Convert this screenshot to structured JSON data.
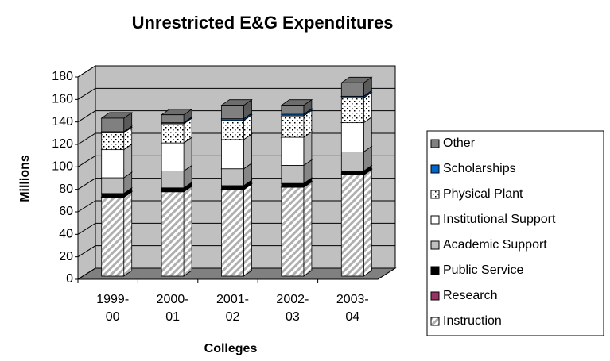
{
  "chart_data": {
    "type": "bar",
    "stacked": true,
    "title": "Unrestricted E&G Expenditures",
    "x_label": "Colleges",
    "y_label": "Millions",
    "categories": [
      "1999-00",
      "2000-01",
      "2001-02",
      "2002-03",
      "2003-04"
    ],
    "series": [
      {
        "name": "Instruction",
        "color": "#c0c0c0",
        "pattern": "hatch",
        "values": [
          70,
          75,
          77,
          79,
          90
        ]
      },
      {
        "name": "Research",
        "color": "#993366",
        "values": [
          0.5,
          0.5,
          0.5,
          0.5,
          0.5
        ]
      },
      {
        "name": "Public Service",
        "color": "#000000",
        "values": [
          3,
          3,
          3,
          3,
          3
        ]
      },
      {
        "name": "Academic Support",
        "color": "#c0c0c0",
        "values": [
          14,
          15,
          15,
          16,
          17
        ]
      },
      {
        "name": "Institutional Support",
        "color": "#ffffff",
        "values": [
          25,
          25,
          26,
          25,
          26
        ]
      },
      {
        "name": "Physical Plant",
        "color": "#ffffff",
        "pattern": "dots",
        "values": [
          15,
          17,
          17,
          19,
          22
        ]
      },
      {
        "name": "Scholarships",
        "color": "#0066cc",
        "values": [
          1,
          1,
          1.5,
          1.5,
          1.5
        ]
      },
      {
        "name": "Other",
        "color": "#808080",
        "values": [
          12,
          7,
          12,
          8,
          12
        ]
      }
    ],
    "ylim": [
      0,
      180
    ],
    "yticks": [
      0,
      20,
      40,
      60,
      80,
      100,
      120,
      140,
      160,
      180
    ],
    "grid": true,
    "legend": "right"
  }
}
